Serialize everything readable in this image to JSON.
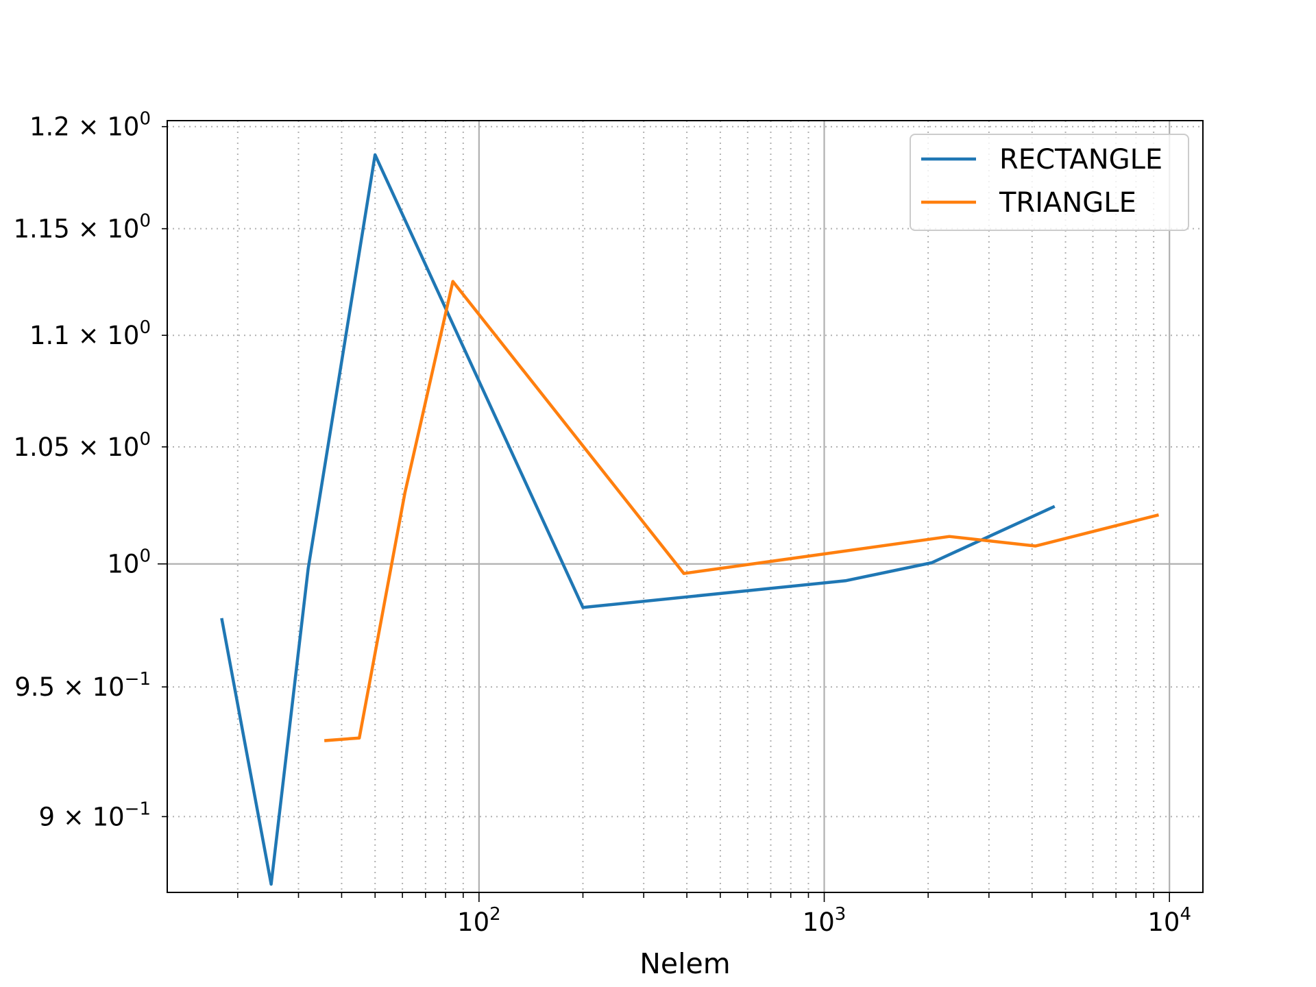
{
  "chart_data": {
    "type": "line",
    "title": "",
    "xlabel": "Nelem",
    "ylabel": "",
    "xscale": "log",
    "yscale": "log",
    "xlim": [
      12.5,
      12500
    ],
    "ylim": [
      0.872,
      1.203
    ],
    "grid": {
      "major": true,
      "minor": true,
      "minor_style": "dotted"
    },
    "legend": {
      "placement": "top-right"
    },
    "x_tick_labels": [
      {
        "base": "10",
        "exp": "2",
        "value": 100
      },
      {
        "base": "10",
        "exp": "3",
        "value": 1000
      },
      {
        "base": "10",
        "exp": "4",
        "value": 10000
      }
    ],
    "y_tick_labels": [
      {
        "mantissa": "1.2 × 10",
        "exp": "0",
        "value": 1.2
      },
      {
        "mantissa": "1.15 × 10",
        "exp": "0",
        "value": 1.15
      },
      {
        "mantissa": "1.1 × 10",
        "exp": "0",
        "value": 1.1
      },
      {
        "mantissa": "1.05 × 10",
        "exp": "0",
        "value": 1.05
      },
      {
        "mantissa": "10",
        "exp": "0",
        "value": 1.0
      },
      {
        "mantissa": "9.5 × 10",
        "exp": "−1",
        "value": 0.95
      },
      {
        "mantissa": "9 × 10",
        "exp": "−1",
        "value": 0.9
      }
    ],
    "series": [
      {
        "name": "RECTANGLE",
        "color": "#1f77b4",
        "x": [
          18,
          25,
          32,
          50,
          200,
          1152,
          2048,
          4608
        ],
        "y": [
          0.977,
          0.875,
          0.998,
          1.186,
          0.982,
          0.993,
          1.0005,
          1.024
        ]
      },
      {
        "name": "TRIANGLE",
        "color": "#ff7f0e",
        "x": [
          36,
          45,
          61,
          84,
          392,
          2304,
          4096,
          9216
        ],
        "y": [
          0.929,
          0.93,
          1.03,
          1.125,
          0.996,
          1.0115,
          1.0075,
          1.0205
        ]
      }
    ]
  }
}
